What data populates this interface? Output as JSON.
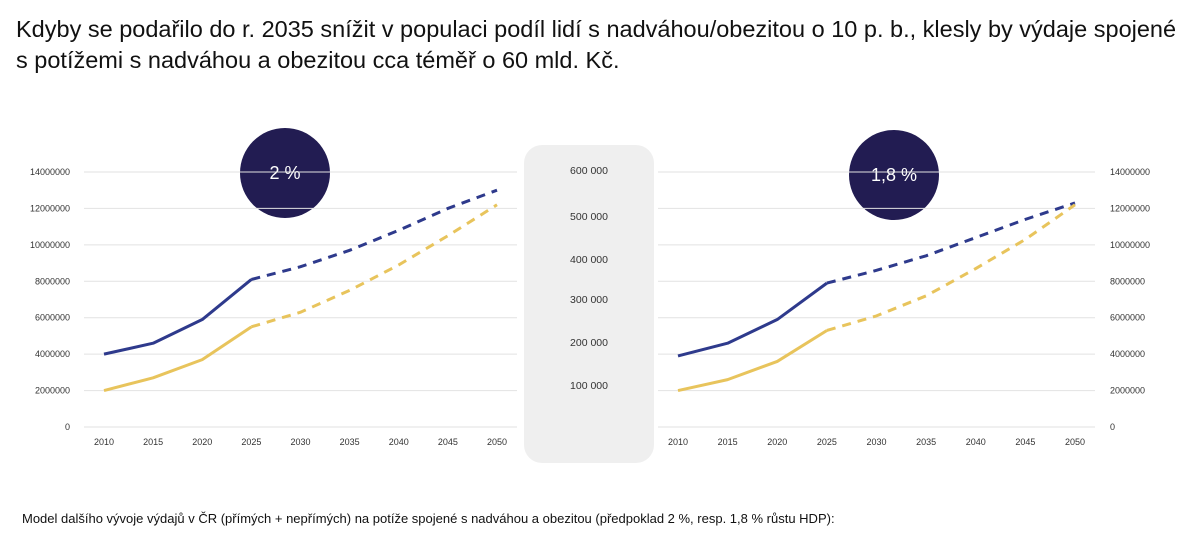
{
  "headline": "Kdyby se podařilo do r. 2035 snížit v populaci podíl lidí s nadváhou/obezitou o 10 p. b., klesly by výdaje spojené s potížemi s nadváhou a obezitou cca téměř o 60 mld. Kč.",
  "footnote": "Model dalšího vývoje výdajů v ČR (přímých + nepřímých) na potíže spojené s nadváhou a obezitou (předpoklad 2 %, resp. 1,8 % růstu HDP):",
  "colors": {
    "navy": "#2e3a8c",
    "gold": "#e8c45c",
    "badge": "#221c52",
    "grid": "#e2e2e2"
  },
  "middle_axis": {
    "ticks": [
      "600 000",
      "500 000",
      "400 000",
      "300 000",
      "200 000",
      "100 000"
    ]
  },
  "chart_data": [
    {
      "type": "line",
      "badge": "2 %",
      "x": [
        "2010",
        "2015",
        "2020",
        "2025",
        "2030",
        "2035",
        "2040",
        "2045",
        "2050"
      ],
      "y_ticks": [
        "14000000",
        "12000000",
        "10000000",
        "8000000",
        "6000000",
        "4000000",
        "2000000",
        "0"
      ],
      "ylim": [
        0,
        14000000
      ],
      "axis_side": "left",
      "series": [
        {
          "color": "#2e3a8c",
          "values": [
            4000000,
            4600000,
            5900000,
            8100000,
            8800000,
            9700000,
            10800000,
            12000000,
            13000000
          ],
          "projected_from": 3
        },
        {
          "color": "#e8c45c",
          "values": [
            2000000,
            2700000,
            3700000,
            5500000,
            6300000,
            7500000,
            8900000,
            10500000,
            12200000
          ],
          "projected_from": 3
        }
      ]
    },
    {
      "type": "line",
      "badge": "1,8 %",
      "x": [
        "2010",
        "2015",
        "2020",
        "2025",
        "2030",
        "2035",
        "2040",
        "2045",
        "2050"
      ],
      "y_ticks": [
        "14000000",
        "12000000",
        "10000000",
        "8000000",
        "6000000",
        "4000000",
        "2000000",
        "0"
      ],
      "ylim": [
        0,
        14000000
      ],
      "axis_side": "right",
      "series": [
        {
          "color": "#2e3a8c",
          "values": [
            3900000,
            4600000,
            5900000,
            7900000,
            8600000,
            9400000,
            10400000,
            11400000,
            12300000
          ],
          "projected_from": 3
        },
        {
          "color": "#e8c45c",
          "values": [
            2000000,
            2600000,
            3600000,
            5300000,
            6100000,
            7200000,
            8700000,
            10300000,
            12200000
          ],
          "projected_from": 3
        }
      ]
    }
  ]
}
